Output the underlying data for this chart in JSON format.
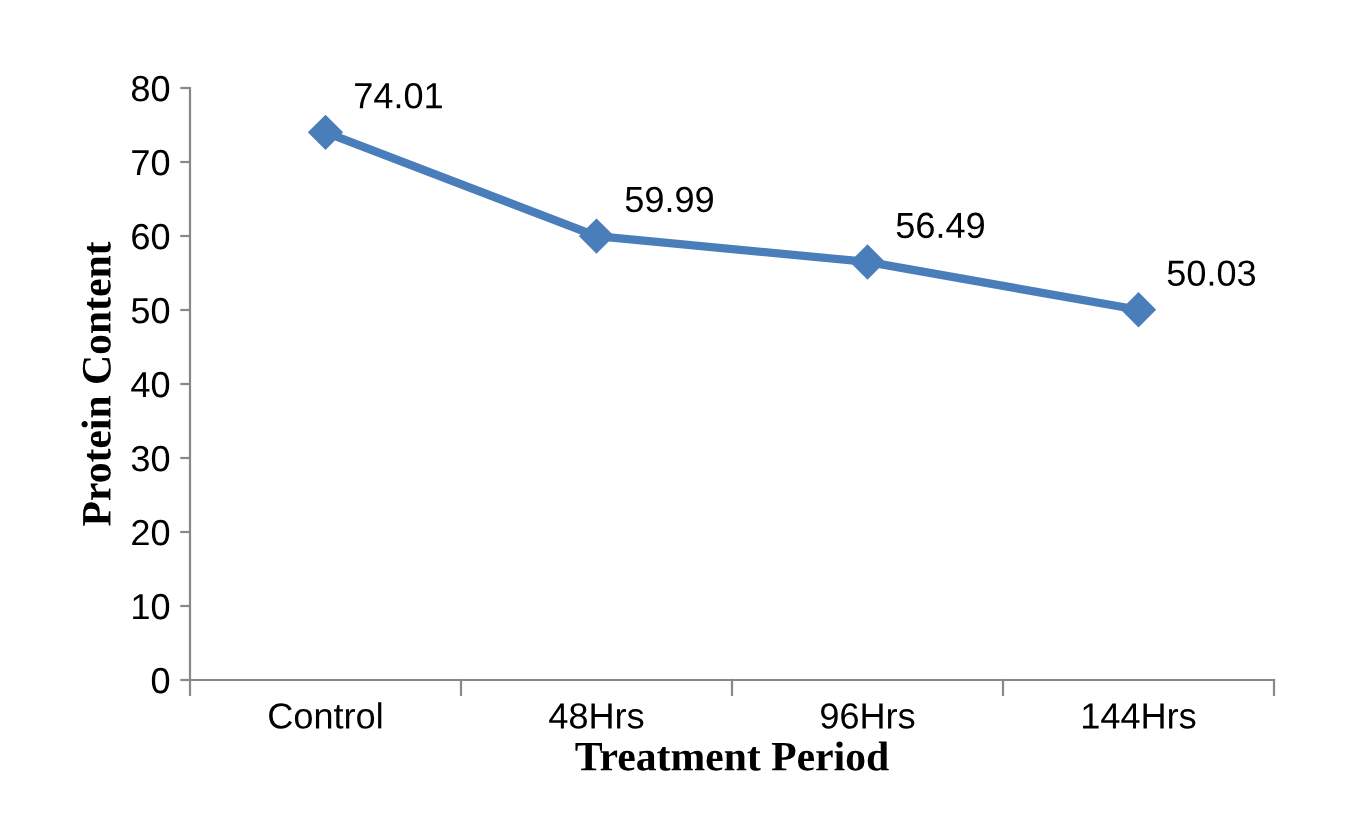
{
  "chart_data": {
    "type": "line",
    "xlabel": "Treatment Period",
    "ylabel": "Protein Content",
    "categories": [
      "Control",
      "48Hrs",
      "96Hrs",
      "144Hrs"
    ],
    "series": [
      {
        "color": "#4a7ebb",
        "values": [
          74.01,
          59.99,
          56.49,
          50.03
        ]
      }
    ],
    "ylim": [
      0,
      80
    ],
    "yticks": [
      0,
      10,
      20,
      30,
      40,
      50,
      60,
      70,
      80
    ],
    "grid": false,
    "legend": false,
    "marker": "diamond",
    "line_style": "solid",
    "data_labels": true
  }
}
